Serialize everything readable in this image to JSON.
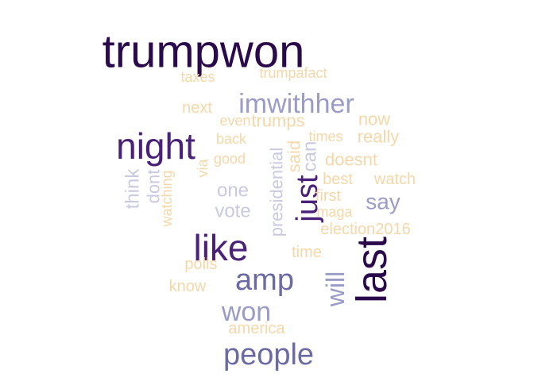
{
  "chart_data": {
    "type": "wordcloud",
    "title": "",
    "words": [
      {
        "text": "trumpwon",
        "weight": 10,
        "color": "#2a0a4a",
        "rotated": false
      },
      {
        "text": "last",
        "weight": 9,
        "color": "#2a0a4a",
        "rotated": true
      },
      {
        "text": "night",
        "weight": 8,
        "color": "#4a2178",
        "rotated": false
      },
      {
        "text": "like",
        "weight": 8,
        "color": "#4a2178",
        "rotated": false
      },
      {
        "text": "just",
        "weight": 7,
        "color": "#4a2178",
        "rotated": true
      },
      {
        "text": "amp",
        "weight": 6,
        "color": "#6b6aa3",
        "rotated": false
      },
      {
        "text": "people",
        "weight": 6,
        "color": "#6b6aa3",
        "rotated": false
      },
      {
        "text": "imwithher",
        "weight": 5,
        "color": "#9b9bc7",
        "rotated": false
      },
      {
        "text": "won",
        "weight": 5,
        "color": "#9b9bc7",
        "rotated": false
      },
      {
        "text": "will",
        "weight": 5,
        "color": "#9b9bc7",
        "rotated": true
      },
      {
        "text": "say",
        "weight": 4,
        "color": "#9b9bc7",
        "rotated": false
      },
      {
        "text": "presidential",
        "weight": 4,
        "color": "#c9c9df",
        "rotated": true
      },
      {
        "text": "one",
        "weight": 3,
        "color": "#c9c9df",
        "rotated": false
      },
      {
        "text": "vote",
        "weight": 3,
        "color": "#c9c9df",
        "rotated": false
      },
      {
        "text": "think",
        "weight": 3,
        "color": "#c9c9df",
        "rotated": true
      },
      {
        "text": "dont",
        "weight": 3,
        "color": "#c9c9df",
        "rotated": true
      },
      {
        "text": "can",
        "weight": 3,
        "color": "#c9c9df",
        "rotated": true
      },
      {
        "text": "said",
        "weight": 3,
        "color": "#f5d7a8",
        "rotated": true
      },
      {
        "text": "really",
        "weight": 2,
        "color": "#f5d7a8",
        "rotated": false
      },
      {
        "text": "trumps",
        "weight": 2,
        "color": "#f5d7a8",
        "rotated": false
      },
      {
        "text": "now",
        "weight": 2,
        "color": "#f5d7a8",
        "rotated": false
      },
      {
        "text": "watch",
        "weight": 2,
        "color": "#f5d7a8",
        "rotated": false
      },
      {
        "text": "doesnt",
        "weight": 2,
        "color": "#f5d7a8",
        "rotated": false
      },
      {
        "text": "election2016",
        "weight": 2,
        "color": "#f5d7a8",
        "rotated": false
      },
      {
        "text": "first",
        "weight": 1,
        "color": "#f5d7a8",
        "rotated": false
      },
      {
        "text": "best",
        "weight": 1,
        "color": "#f5d7a8",
        "rotated": false
      },
      {
        "text": "maga",
        "weight": 1,
        "color": "#f5d7a8",
        "rotated": false
      },
      {
        "text": "time",
        "weight": 1,
        "color": "#f5d7a8",
        "rotated": false
      },
      {
        "text": "times",
        "weight": 1,
        "color": "#f5d7a8",
        "rotated": false
      },
      {
        "text": "next",
        "weight": 1,
        "color": "#f5d7a8",
        "rotated": false
      },
      {
        "text": "taxes",
        "weight": 1,
        "color": "#f5d7a8",
        "rotated": false
      },
      {
        "text": "trumpafact",
        "weight": 1,
        "color": "#f5d7a8",
        "rotated": false
      },
      {
        "text": "even",
        "weight": 1,
        "color": "#f5d7a8",
        "rotated": false
      },
      {
        "text": "back",
        "weight": 1,
        "color": "#f5d7a8",
        "rotated": false
      },
      {
        "text": "good",
        "weight": 1,
        "color": "#f5d7a8",
        "rotated": false
      },
      {
        "text": "via",
        "weight": 1,
        "color": "#f5d7a8",
        "rotated": true
      },
      {
        "text": "watching",
        "weight": 1,
        "color": "#f5d7a8",
        "rotated": true
      },
      {
        "text": "polls",
        "weight": 1,
        "color": "#f5d7a8",
        "rotated": false
      },
      {
        "text": "know",
        "weight": 1,
        "color": "#f5d7a8",
        "rotated": false
      },
      {
        "text": "america",
        "weight": 1,
        "color": "#f5d7a8",
        "rotated": false
      }
    ]
  }
}
